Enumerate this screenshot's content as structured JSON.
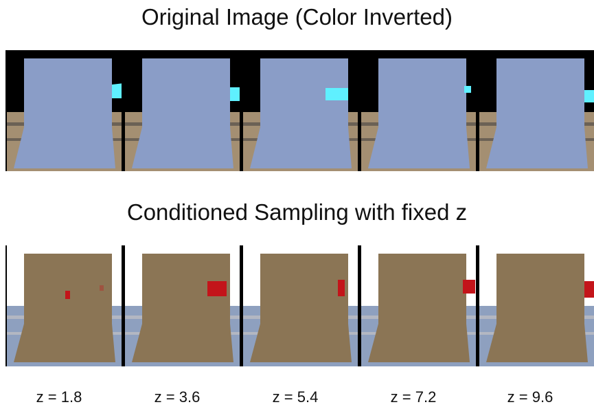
{
  "header": {
    "title": "Original Image (Color Inverted)"
  },
  "section2": {
    "title": "Conditioned Sampling with fixed z"
  },
  "colors": {
    "inverted_sky": "#000000",
    "inverted_object": "#8a9dc7",
    "inverted_floor": "#a48f72",
    "inverted_floor_dark": "#6b6155",
    "inverted_target": "#5ff0ff",
    "sample_sky": "#ffffff",
    "sample_object": "#8b7555",
    "sample_floor": "#8ea0bf",
    "sample_floor_dark": "#b3b7c2",
    "sample_target": "#c3141a"
  },
  "z_labels": [
    "z = 1.8",
    "z = 3.6",
    "z = 5.4",
    "z = 7.2",
    "z = 9.6"
  ]
}
